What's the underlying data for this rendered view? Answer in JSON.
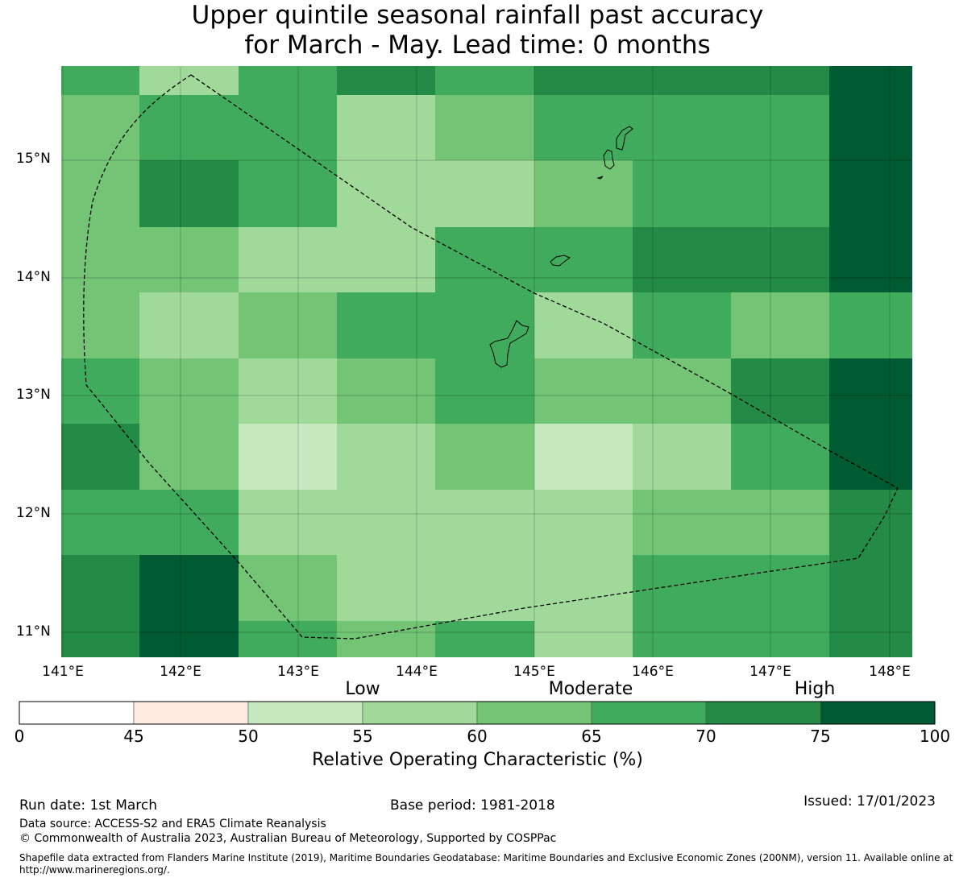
{
  "title": {
    "line1": "Upper quintile seasonal rainfall past accuracy",
    "line2": "for March - May. Lead time: 0 months"
  },
  "map": {
    "lat_labels": [
      "15°N",
      "14°N",
      "13°N",
      "12°N",
      "11°N"
    ],
    "lon_labels": [
      "141°E",
      "142°E",
      "143°E",
      "144°E",
      "145°E",
      "146°E",
      "147°E",
      "148°E"
    ],
    "grid_columns_lon": [
      "141.0",
      "141.7",
      "142.5",
      "143.3",
      "144.2",
      "145.0",
      "145.8",
      "146.7",
      "147.5",
      "148.2"
    ],
    "grid_rows_lat": [
      "15.8",
      "15.6",
      "15.0",
      "14.4",
      "13.9",
      "13.3",
      "12.8",
      "12.2",
      "11.7",
      "11.1",
      "10.8"
    ],
    "roc_grid_class_index": [
      [
        5,
        3,
        5,
        6,
        5,
        6,
        6,
        6,
        7
      ],
      [
        4,
        5,
        5,
        3,
        4,
        5,
        5,
        5,
        7
      ],
      [
        4,
        6,
        5,
        3,
        3,
        4,
        5,
        5,
        7
      ],
      [
        4,
        4,
        3,
        3,
        5,
        5,
        6,
        6,
        7
      ],
      [
        4,
        3,
        4,
        5,
        5,
        3,
        5,
        4,
        5
      ],
      [
        5,
        4,
        3,
        4,
        5,
        4,
        4,
        6,
        7
      ],
      [
        6,
        4,
        2,
        3,
        4,
        2,
        3,
        5,
        7
      ],
      [
        5,
        5,
        3,
        3,
        3,
        3,
        4,
        4,
        6
      ],
      [
        6,
        7,
        4,
        3,
        3,
        3,
        5,
        5,
        6
      ],
      [
        6,
        7,
        5,
        4,
        5,
        3,
        5,
        5,
        6
      ]
    ],
    "eez_boundary_style": "dashed"
  },
  "colorbar": {
    "categories": [
      "Low",
      "Moderate",
      "High"
    ],
    "ticks": [
      "0",
      "45",
      "50",
      "55",
      "60",
      "65",
      "70",
      "75",
      "100"
    ],
    "colors": [
      "#ffffff",
      "#feebe2",
      "#c7e9c0",
      "#a1d99b",
      "#74c476",
      "#41ab5d",
      "#238b45",
      "#005a32"
    ],
    "title": "Relative Operating Characteristic (%)"
  },
  "footer": {
    "run_date": "Run date: 1st March",
    "base_period": "Base period: 1981-2018",
    "issued": "Issued: 17/01/2023",
    "data_source": "Data source: ACCESS-S2 and ERA5 Climate Reanalysis",
    "copyright": "© Commonwealth of Australia 2023, Australian Bureau of Meteorology, Supported by COSPPac",
    "shapefile_note": "Shapefile data extracted from Flanders Marine Institute (2019), Maritime Boundaries Geodatabase: Maritime Boundaries and Exclusive Economic Zones (200NM), version 11. Available online at http://www.marineregions.org/."
  }
}
